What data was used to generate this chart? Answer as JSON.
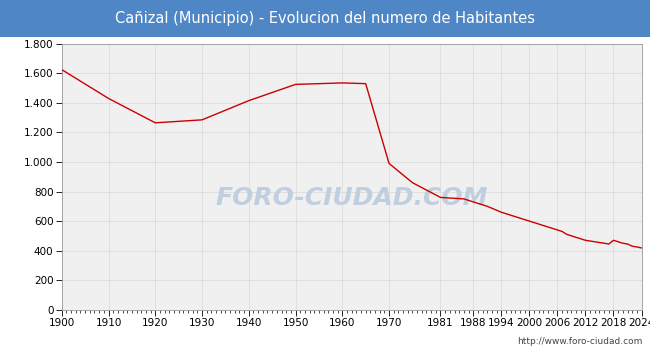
{
  "title": "Cañizal (Municipio) - Evolucion del numero de Habitantes",
  "title_bg_color": "#4f86c6",
  "title_text_color": "#ffffff",
  "line_color": "#cc0000",
  "outer_bg_color": "#ffffff",
  "plot_bg_color": "#f0f0f0",
  "grid_color": "#d8d8d8",
  "watermark": "FORO-CIUDAD.COM",
  "watermark_color": "#c0cfe0",
  "url_text": "http://www.foro-ciudad.com",
  "years": [
    1900,
    1910,
    1920,
    1925,
    1930,
    1940,
    1950,
    1960,
    1965,
    1970,
    1975,
    1981,
    1986,
    1991,
    1994,
    1996,
    1999,
    2000,
    2001,
    2003,
    2004,
    2006,
    2007,
    2008,
    2009,
    2010,
    2011,
    2012,
    2013,
    2014,
    2015,
    2016,
    2017,
    2018,
    2019,
    2020,
    2021,
    2022,
    2023,
    2024
  ],
  "values": [
    1625,
    1430,
    1265,
    1275,
    1285,
    1415,
    1525,
    1535,
    1530,
    990,
    860,
    760,
    750,
    700,
    660,
    640,
    610,
    600,
    590,
    570,
    560,
    540,
    530,
    510,
    500,
    490,
    480,
    470,
    465,
    460,
    455,
    450,
    445,
    470,
    460,
    450,
    445,
    430,
    425,
    418
  ],
  "xlim": [
    1900,
    2024
  ],
  "ylim": [
    0,
    1800
  ],
  "yticks": [
    0,
    200,
    400,
    600,
    800,
    1000,
    1200,
    1400,
    1600,
    1800
  ],
  "ytick_labels": [
    "0",
    "200",
    "400",
    "600",
    "800",
    "1.000",
    "1.200",
    "1.400",
    "1.600",
    "1.800"
  ],
  "xtick_labels": [
    "1900",
    "1910",
    "1920",
    "1930",
    "1940",
    "1950",
    "1960",
    "1970",
    "1981",
    "1988",
    "1994",
    "2000",
    "2006",
    "2012",
    "2018",
    "2024"
  ],
  "xtick_positions": [
    1900,
    1910,
    1920,
    1930,
    1940,
    1950,
    1960,
    1970,
    1981,
    1988,
    1994,
    2000,
    2006,
    2012,
    2018,
    2024
  ],
  "figsize": [
    6.5,
    3.5
  ],
  "dpi": 100
}
